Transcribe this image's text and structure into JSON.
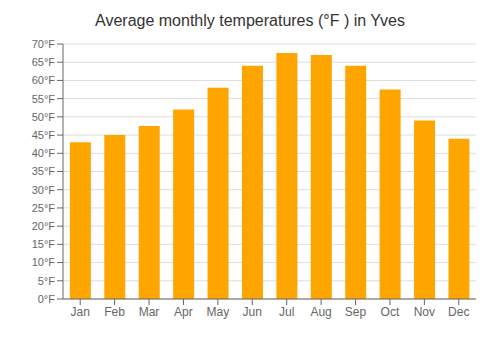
{
  "chart_data": {
    "type": "bar",
    "title": "Average monthly temperatures (°F ) in Yves",
    "categories": [
      "Jan",
      "Feb",
      "Mar",
      "Apr",
      "May",
      "Jun",
      "Jul",
      "Aug",
      "Sep",
      "Oct",
      "Nov",
      "Dec"
    ],
    "values": [
      43,
      45,
      47.5,
      52,
      58,
      64,
      67.5,
      67,
      64,
      57.5,
      49,
      44
    ],
    "color": "#FFA500",
    "ylim": [
      0,
      70
    ],
    "yticks": [
      {
        "value": 0,
        "label": "0°F"
      },
      {
        "value": 5,
        "label": "5°F"
      },
      {
        "value": 10,
        "label": "10°F"
      },
      {
        "value": 15,
        "label": "15°F"
      },
      {
        "value": 20,
        "label": "20°F"
      },
      {
        "value": 25,
        "label": "25°F"
      },
      {
        "value": 30,
        "label": "30°F"
      },
      {
        "value": 35,
        "label": "35°F"
      },
      {
        "value": 40,
        "label": "40°F"
      },
      {
        "value": 45,
        "label": "45°F"
      },
      {
        "value": 50,
        "label": "50°F"
      },
      {
        "value": 55,
        "label": "55°F"
      },
      {
        "value": 60,
        "label": "60°F"
      },
      {
        "value": 65,
        "label": "65°F"
      },
      {
        "value": 70,
        "label": "70°F"
      }
    ],
    "grid": true
  }
}
